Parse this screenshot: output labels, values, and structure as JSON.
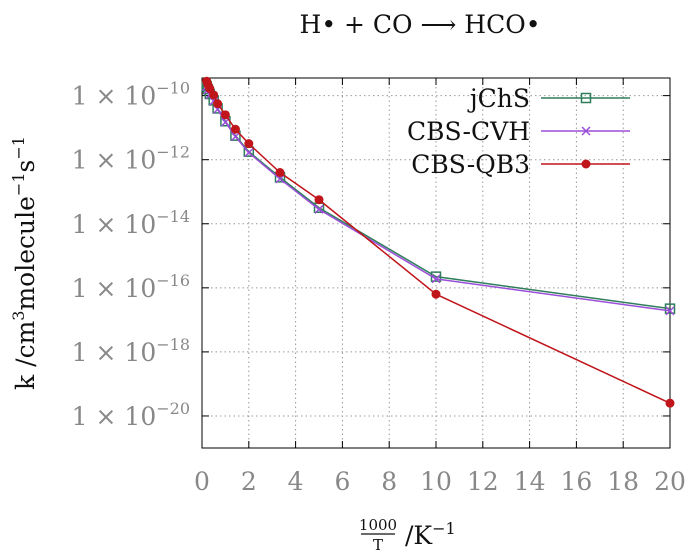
{
  "chart_data": {
    "type": "line",
    "title": "H• + CO ⟶ HCO•",
    "xlabel": "1000/T /K⁻¹",
    "ylabel": "k /cm³molecule⁻¹s⁻¹",
    "x_scale": "linear",
    "y_scale": "log",
    "xlim": [
      0,
      20
    ],
    "ylim_exponent": [
      -21,
      -9.45
    ],
    "x_ticks": [
      0,
      2,
      4,
      6,
      8,
      10,
      12,
      14,
      16,
      18,
      20
    ],
    "y_ticks": [
      {
        "label_prefix": "1 × 10",
        "exponent": "-10",
        "value_exp": -10
      },
      {
        "label_prefix": "1 × 10",
        "exponent": "-12",
        "value_exp": -12
      },
      {
        "label_prefix": "1 × 10",
        "exponent": "-14",
        "value_exp": -14
      },
      {
        "label_prefix": "1 × 10",
        "exponent": "-16",
        "value_exp": -16
      },
      {
        "label_prefix": "1 × 10",
        "exponent": "-18",
        "value_exp": -18
      },
      {
        "label_prefix": "1 × 10",
        "exponent": "-20",
        "value_exp": -20
      }
    ],
    "grid": true,
    "legend_position": "top-right",
    "series": [
      {
        "name": "jChS",
        "color": "#2e7d5b",
        "marker": "square",
        "x": [
          0.2,
          0.25,
          0.333,
          0.5,
          0.667,
          1.0,
          1.429,
          2.0,
          3.333,
          5.0,
          10.0,
          20.0
        ],
        "log10_y": [
          -9.7,
          -9.8,
          -9.95,
          -10.15,
          -10.4,
          -10.8,
          -11.25,
          -11.75,
          -12.55,
          -13.5,
          -15.65,
          -16.65
        ]
      },
      {
        "name": "CBS-CVH",
        "color": "#9b4fd9",
        "marker": "x",
        "x": [
          0.2,
          0.25,
          0.333,
          0.5,
          0.667,
          1.0,
          1.429,
          2.0,
          3.333,
          5.0,
          10.0,
          20.0
        ],
        "log10_y": [
          -9.72,
          -9.82,
          -9.97,
          -10.17,
          -10.43,
          -10.83,
          -11.28,
          -11.78,
          -12.6,
          -13.55,
          -15.72,
          -16.72
        ]
      },
      {
        "name": "CBS-QB3",
        "color": "#c0151b",
        "marker": "circle",
        "x": [
          0.2,
          0.25,
          0.333,
          0.5,
          0.667,
          1.0,
          1.429,
          2.0,
          3.333,
          5.0,
          10.0,
          20.0
        ],
        "log10_y": [
          -9.55,
          -9.65,
          -9.78,
          -9.98,
          -10.25,
          -10.6,
          -11.05,
          -11.5,
          -12.4,
          -13.25,
          -16.2,
          -19.6
        ]
      }
    ]
  }
}
